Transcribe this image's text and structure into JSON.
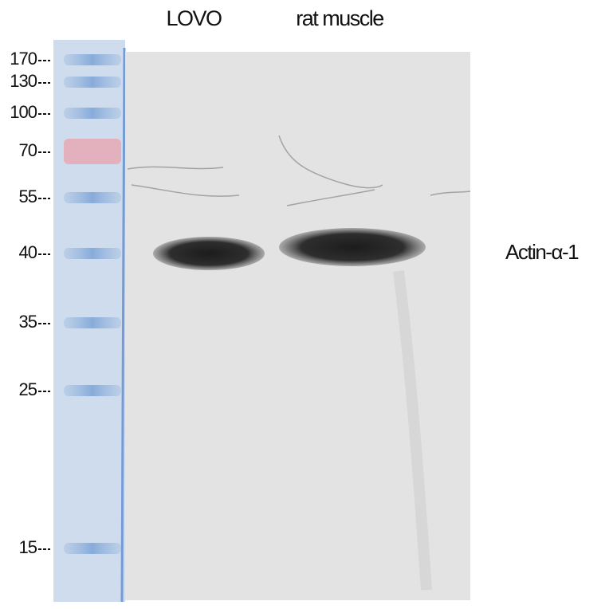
{
  "lanes": [
    "LOVO",
    "rat muscle"
  ],
  "markers": [
    "170",
    "130",
    "100",
    "70",
    "55",
    "40",
    "35",
    "25",
    "15"
  ],
  "band_label": "Actin-α-1"
}
